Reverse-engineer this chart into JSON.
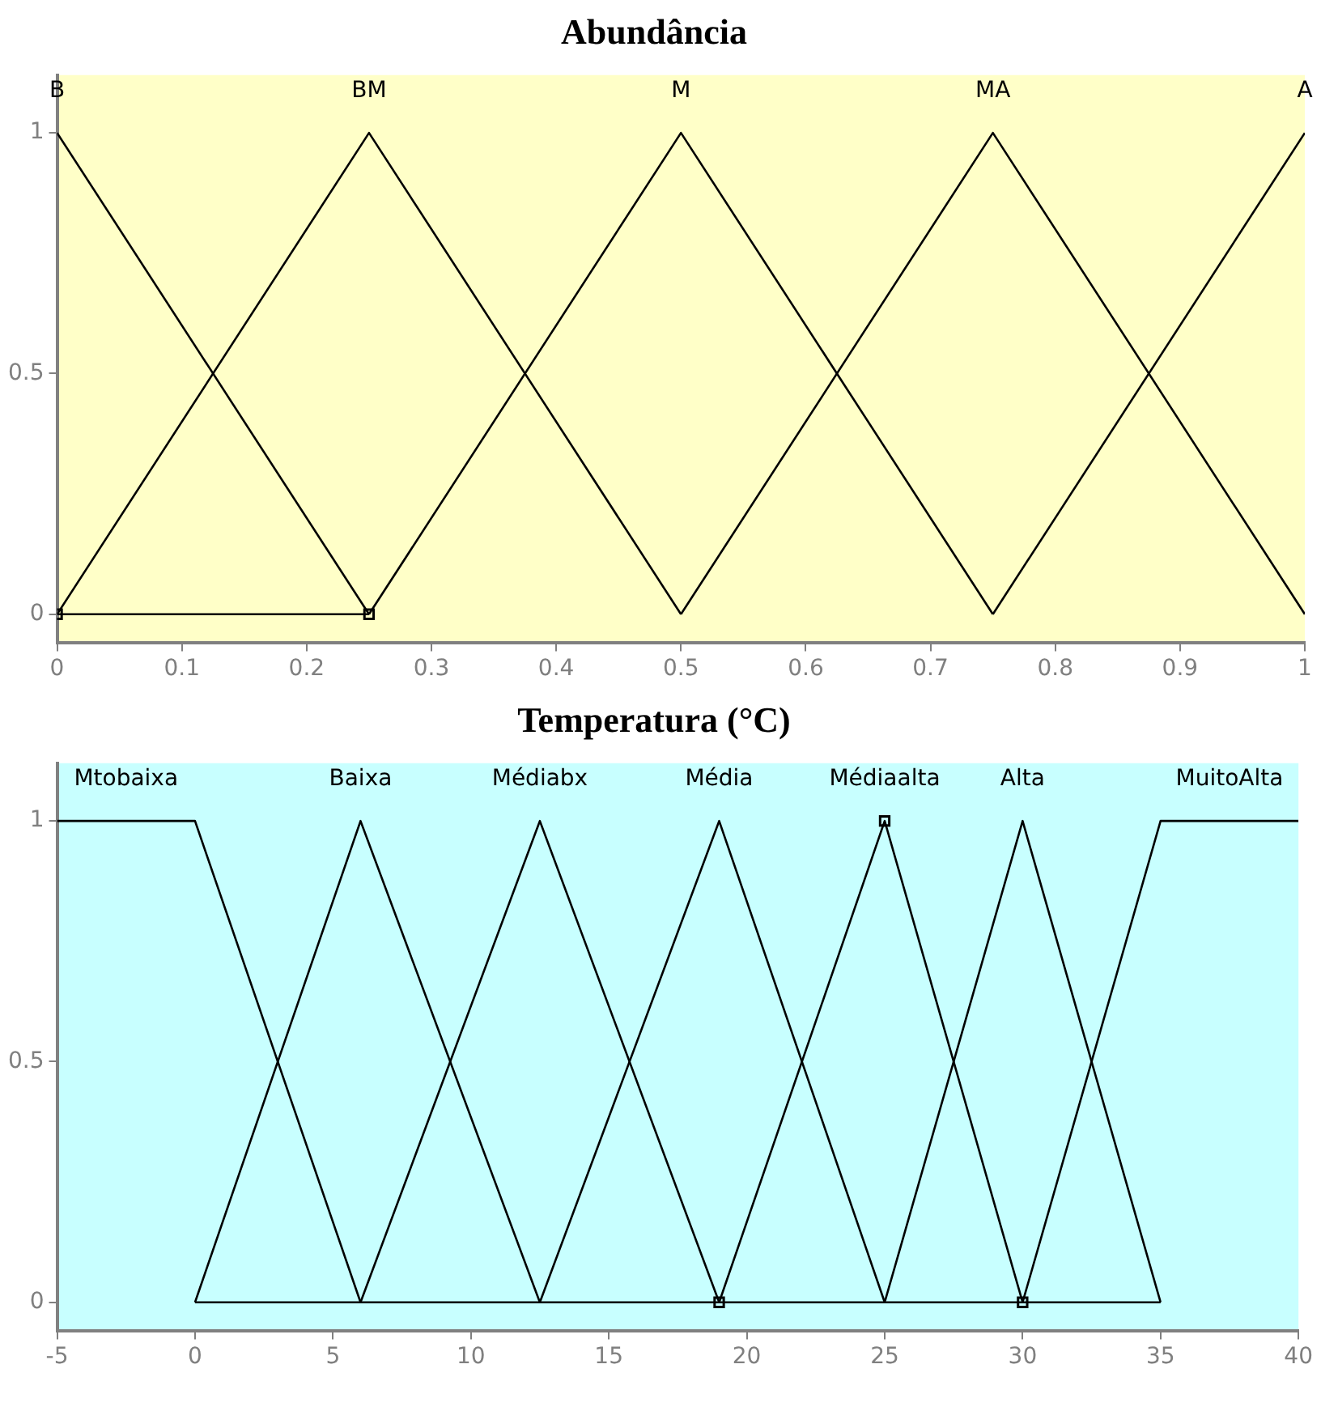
{
  "chart_data": [
    {
      "type": "line",
      "title": "Abundância",
      "xlim": [
        0,
        1
      ],
      "ylim": [
        -0.06,
        1.12
      ],
      "xticks": [
        0,
        0.1,
        0.2,
        0.3,
        0.4,
        0.5,
        0.6,
        0.7,
        0.8,
        0.9,
        1
      ],
      "yticks": [
        0,
        0.5,
        1
      ],
      "grid": false,
      "legend": false,
      "marker": "none",
      "line_style": "solid",
      "series": [
        {
          "name": "B",
          "color": "#000000",
          "x": [
            0,
            0.25
          ],
          "values": [
            1,
            0
          ]
        },
        {
          "name": "BM",
          "color": "#000000",
          "x": [
            0,
            0.25,
            0.5
          ],
          "values": [
            0,
            1,
            0
          ]
        },
        {
          "name": "M",
          "color": "#000000",
          "x": [
            0.25,
            0.5,
            0.75
          ],
          "values": [
            0,
            1,
            0
          ]
        },
        {
          "name": "MA",
          "color": "#000000",
          "x": [
            0.5,
            0.75,
            1
          ],
          "values": [
            0,
            1,
            0
          ]
        },
        {
          "name": "A",
          "color": "#000000",
          "x": [
            0.75,
            1
          ],
          "values": [
            0,
            1
          ]
        },
        {
          "color": "#000000",
          "x": [
            0,
            0.25
          ],
          "values": [
            0,
            0
          ]
        },
        {
          "type": "scatter",
          "marker": "square",
          "color": "#000000",
          "x": [
            0,
            0.25
          ],
          "values": [
            0,
            0
          ]
        }
      ]
    },
    {
      "type": "line",
      "title": "Temperatura (°C)",
      "xlim": [
        -5,
        40
      ],
      "ylim": [
        -0.06,
        1.12
      ],
      "xticks": [
        -5,
        0,
        5,
        10,
        15,
        20,
        25,
        30,
        35,
        40
      ],
      "yticks": [
        0,
        0.5,
        1
      ],
      "grid": false,
      "legend": false,
      "marker": "none",
      "line_style": "solid",
      "series": [
        {
          "name": "Mtobaixa",
          "color": "#000000",
          "x": [
            -5,
            0,
            6
          ],
          "values": [
            1,
            1,
            0
          ]
        },
        {
          "name": "Baixa",
          "color": "#000000",
          "x": [
            0,
            6,
            12.5
          ],
          "values": [
            0,
            1,
            0
          ]
        },
        {
          "name": "Médiabx",
          "color": "#000000",
          "x": [
            6,
            12.5,
            19
          ],
          "values": [
            0,
            1,
            0
          ]
        },
        {
          "name": "Média",
          "color": "#000000",
          "x": [
            12.5,
            19,
            25
          ],
          "values": [
            0,
            1,
            0
          ]
        },
        {
          "name": "Médiaalta",
          "color": "#000000",
          "x": [
            19,
            25,
            30
          ],
          "values": [
            0,
            1,
            0
          ]
        },
        {
          "name": "Alta",
          "color": "#000000",
          "x": [
            25,
            30,
            35
          ],
          "values": [
            0,
            1,
            0
          ]
        },
        {
          "name": "MuitoAlta",
          "color": "#000000",
          "x": [
            30,
            35,
            40
          ],
          "values": [
            0,
            1,
            1
          ]
        },
        {
          "color": "#000000",
          "x": [
            0,
            35
          ],
          "values": [
            0,
            0
          ]
        },
        {
          "type": "scatter",
          "marker": "square",
          "color": "#000000",
          "x": [
            19,
            25,
            30
          ],
          "values": [
            0,
            1,
            0
          ]
        }
      ]
    }
  ]
}
